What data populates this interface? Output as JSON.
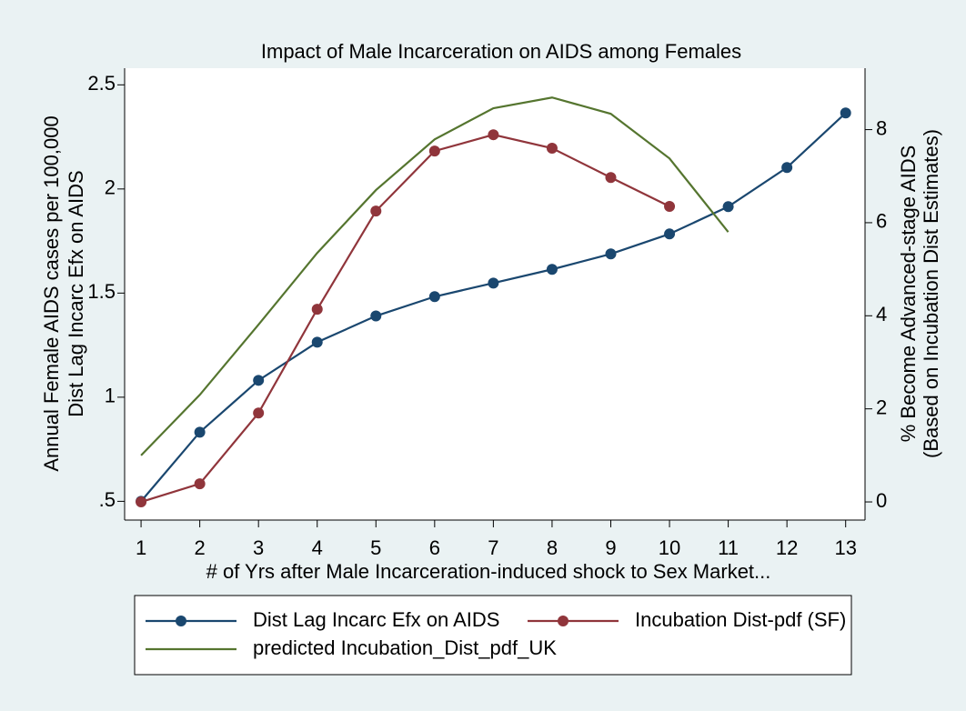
{
  "chart_data": {
    "type": "line",
    "title": "Impact of Male Incarceration on AIDS among Females",
    "xlabel": "# of Yrs after Male Incarceration-induced shock to Sex Market...",
    "ylabel": [
      "Annual Female AIDS cases per 100,000",
      "Dist Lag Incarc Efx on AIDS"
    ],
    "y2label": [
      "% Become Advanced-stage AIDS",
      "(Based on Incubation Dist Estimates)"
    ],
    "xlim": [
      0.72,
      13.33
    ],
    "xticks": [
      1,
      2,
      3,
      4,
      5,
      6,
      7,
      8,
      9,
      10,
      11,
      12,
      13
    ],
    "ylim": [
      0.41,
      2.58
    ],
    "yticks": [
      {
        "value": 0.5,
        "label": ".5"
      },
      1,
      1.5,
      2,
      2.5
    ],
    "y2lim": [
      -0.39,
      9.32
    ],
    "y2ticks": [
      0,
      2,
      4,
      6,
      8
    ],
    "grid": false,
    "legend": "bottom",
    "series": [
      {
        "name": "Dist Lag Incarc Efx on AIDS",
        "color": "#1a476f",
        "markers": true,
        "axis": "y",
        "x": [
          1,
          2,
          3,
          4,
          5,
          6,
          7,
          8,
          9,
          10,
          11,
          12,
          13
        ],
        "values": [
          0.5,
          0.832,
          1.081,
          1.264,
          1.39,
          1.483,
          1.548,
          1.614,
          1.688,
          1.784,
          1.915,
          2.103,
          2.365
        ]
      },
      {
        "name": "Incubation Dist-pdf (SF)",
        "color": "#90353b",
        "markers": true,
        "axis": "y2",
        "x": [
          1,
          2,
          3,
          4,
          5,
          6,
          7,
          8,
          9,
          10
        ],
        "values": [
          0,
          0.39,
          1.91,
          4.14,
          6.25,
          7.54,
          7.89,
          7.6,
          6.97,
          6.35
        ]
      },
      {
        "name": "predicted Incubation_Dist_pdf_UK",
        "color": "#55752f",
        "markers": false,
        "axis": "y2",
        "x": [
          1,
          2,
          3,
          4,
          5,
          6,
          7,
          8,
          9,
          10,
          11
        ],
        "values": [
          1.0,
          2.3,
          3.81,
          5.35,
          6.7,
          7.79,
          8.46,
          8.69,
          8.34,
          7.38,
          5.8
        ]
      }
    ]
  }
}
